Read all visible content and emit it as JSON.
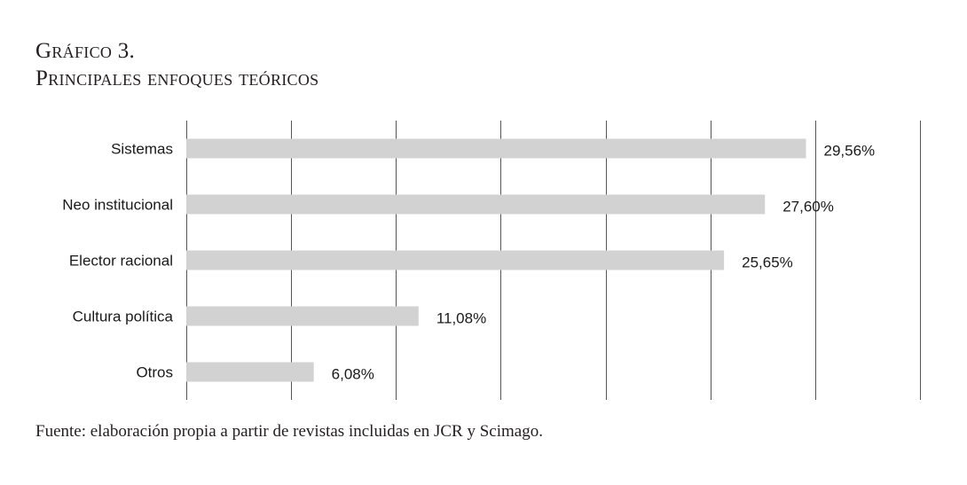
{
  "figure": {
    "title_line1": "Gráfico 3.",
    "title_line2": "Principales enfoques teóricos",
    "source": "Fuente: elaboración propia a partir de revistas incluidas en JCR y Scimago."
  },
  "colors": {
    "bar": "#d2d2d2",
    "grid": "#555555",
    "text": "#1a1a1a"
  },
  "chart_data": {
    "type": "bar",
    "orientation": "horizontal",
    "categories": [
      "Sistemas",
      "Neo institucional",
      "Elector racional",
      "Cultura política",
      "Otros"
    ],
    "values": [
      29.56,
      27.6,
      25.65,
      11.08,
      6.08
    ],
    "value_labels": [
      "29,56%",
      "27,60%",
      "25,65%",
      "11,08%",
      "6,08%"
    ],
    "xlim": [
      0,
      35
    ],
    "grid": true,
    "legend": "none"
  }
}
